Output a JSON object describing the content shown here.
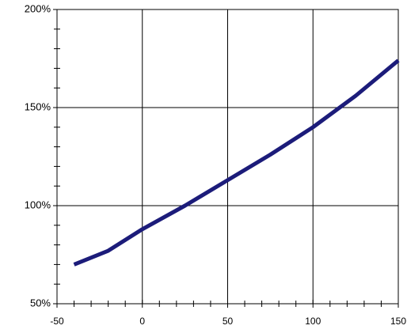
{
  "chart_data": {
    "type": "line",
    "x": [
      -40,
      -20,
      0,
      25,
      50,
      75,
      100,
      125,
      150
    ],
    "series": [
      {
        "name": null,
        "color": "#1c1c7a",
        "values": [
          70,
          77,
          88,
          100,
          113,
          126,
          140,
          156,
          174
        ]
      }
    ],
    "xlim": [
      -50,
      150
    ],
    "xticks": [
      -50,
      0,
      50,
      100,
      150
    ],
    "xminorticks": [
      -40,
      -30,
      -20,
      -10,
      10,
      20,
      30,
      40,
      60,
      70,
      80,
      90,
      110,
      120,
      130,
      140
    ],
    "ylim": [
      50,
      200
    ],
    "yticks": [
      {
        "value": 50,
        "label": "50%"
      },
      {
        "value": 100,
        "label": "100%"
      },
      {
        "value": 150,
        "label": "150%"
      },
      {
        "value": 200,
        "label": "200%"
      }
    ],
    "yminorticks": [
      60,
      70,
      80,
      90,
      110,
      120,
      130,
      140,
      160,
      170,
      180,
      190
    ],
    "grid": true
  }
}
